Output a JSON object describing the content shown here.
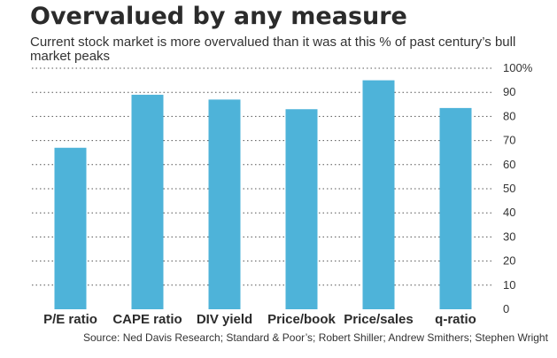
{
  "chart_data": {
    "type": "bar",
    "title": "Overvalued by any measure",
    "subtitle": "Current stock market is more overvalued than it was at this % of past century’s bull market peaks",
    "categories": [
      "P/E ratio",
      "CAPE ratio",
      "DIV yield",
      "Price/book",
      "Price/sales",
      "q-ratio"
    ],
    "series": [
      {
        "values": [
          67,
          89,
          87,
          83,
          95,
          83.5
        ]
      }
    ],
    "ylim": [
      0,
      100
    ],
    "yticks": [
      "0",
      "10",
      "20",
      "30",
      "40",
      "50",
      "60",
      "70",
      "80",
      "90",
      "100%"
    ],
    "grid": true,
    "bar_color": "#4eb3d9",
    "source": "Source: Ned Davis Research; Standard & Poor’s; Robert Shiller; Andrew Smithers; Stephen Wright"
  }
}
